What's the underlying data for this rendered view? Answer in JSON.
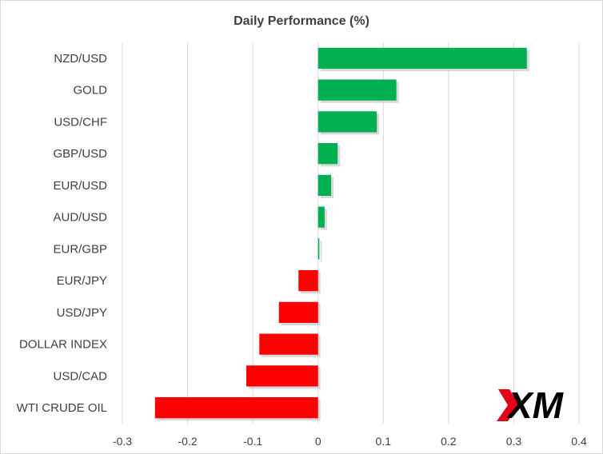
{
  "chart_data": {
    "type": "bar",
    "orientation": "horizontal",
    "title": "Daily Performance (%)",
    "xlabel": "",
    "ylabel": "",
    "categories": [
      "NZD/USD",
      "GOLD",
      "USD/CHF",
      "GBP/USD",
      "EUR/USD",
      "AUD/USD",
      "EUR/GBP",
      "EUR/JPY",
      "USD/JPY",
      "DOLLAR INDEX",
      "USD/CAD",
      "WTI CRUDE OIL"
    ],
    "values": [
      0.32,
      0.12,
      0.09,
      0.03,
      0.02,
      0.01,
      0.002,
      -0.03,
      -0.06,
      -0.09,
      -0.11,
      -0.25
    ],
    "xlim": [
      -0.3,
      0.4
    ],
    "xticks": [
      "-0.3",
      "-0.2",
      "-0.1",
      "0",
      "0.1",
      "0.2",
      "0.3",
      "0.4"
    ],
    "grid": "vertical",
    "legend": "none",
    "colors": {
      "positive": "#00b050",
      "negative": "#ff0000"
    }
  },
  "logo": {
    "text": "XM",
    "accent": "#e2001a"
  }
}
